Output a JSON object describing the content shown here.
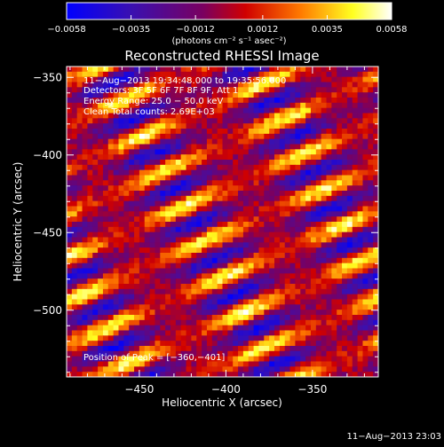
{
  "chart_data": {
    "type": "heatmap",
    "title": "Reconstructed RHESSI Image",
    "xlabel": "Heliocentric X (arcsec)",
    "ylabel": "Heliocentric Y (arcsec)",
    "xlim": [
      -492,
      -312
    ],
    "ylim": [
      -543,
      -343
    ],
    "x_ticks": [
      -450,
      -400,
      -350
    ],
    "x_tick_labels": [
      "−450",
      "−400",
      "−350"
    ],
    "y_ticks": [
      -500,
      -450,
      -400,
      -350
    ],
    "y_tick_labels": [
      "−500",
      "−450",
      "−400",
      "−350"
    ],
    "colorbar": {
      "range": [
        -0.0058,
        0.0058
      ],
      "ticks": [
        -0.0058,
        -0.0035,
        -0.0012,
        0.0012,
        0.0035,
        0.0058
      ],
      "tick_labels": [
        "−0.0058",
        "−0.0035",
        "−0.0012",
        "0.0012",
        "0.0035",
        "0.0058"
      ],
      "unit": "(photons cm⁻² s⁻¹ asec⁻²)",
      "colors": [
        "#0000ff",
        "#5a007f",
        "#c40000",
        "#ff7a00",
        "#ffff00",
        "#ffffff"
      ]
    },
    "peak": [
      -360,
      -401
    ],
    "annotations": [
      "11−Aug−2013 19:34:48.000 to 19:35:56.000",
      "Detectors: 3F 5F 6F 7F 8F 9F, Att 1",
      "Energy Range: 25.0 − 50.0 keV",
      "Clean   Total counts: 2.69E+03"
    ],
    "peak_label": "Position of Peak = [−360,−401]"
  },
  "footer": {
    "timestamp": "11−Aug−2013 23:03"
  }
}
